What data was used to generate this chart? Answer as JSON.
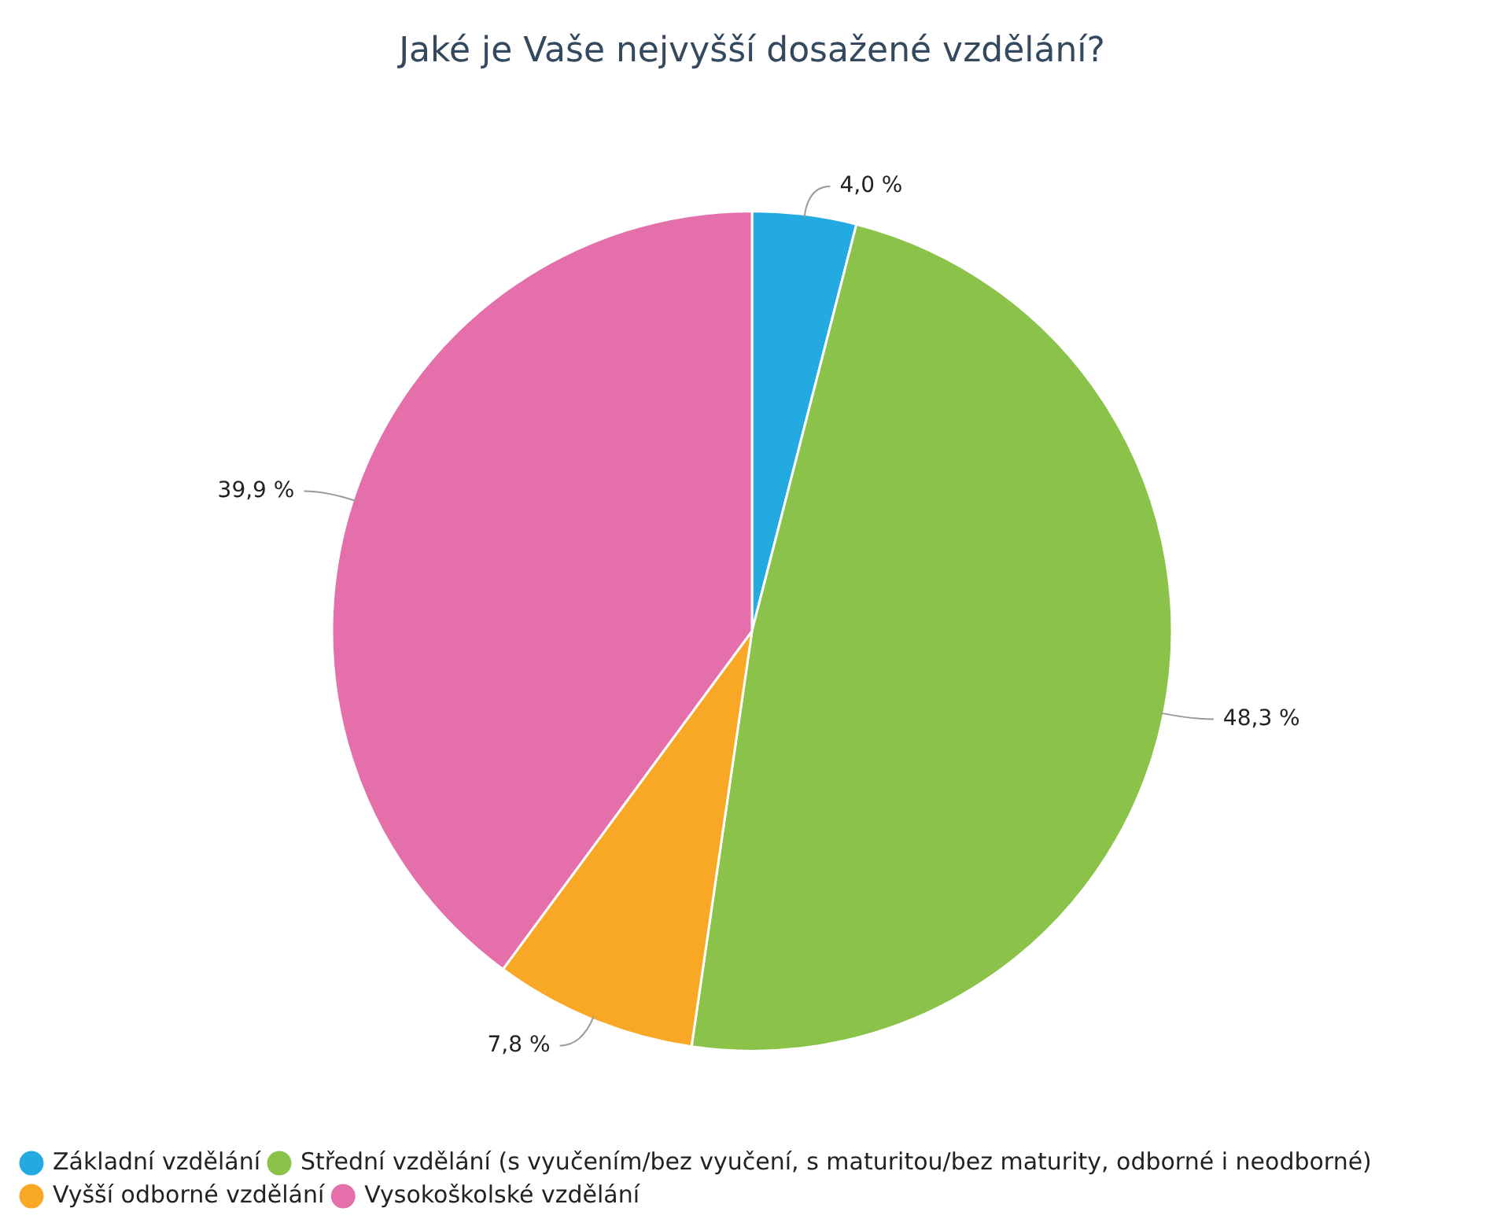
{
  "chart_data": {
    "type": "pie",
    "title": "Jaké je Vaše nejvyšší dosažené vzdělání?",
    "categories": [
      "Základní vzdělání",
      "Střední vzdělání (s vyučením/bez vyučení, s maturitou/bez maturity, odborné i neodborné)",
      "Vyšší odborné vzdělání",
      "Vysokoškolské vzdělání"
    ],
    "values": [
      4.0,
      48.3,
      7.8,
      39.9
    ],
    "colors": [
      "#22aae1",
      "#8bc34a",
      "#f9a825",
      "#e56faa"
    ],
    "value_labels": [
      "4,0 %",
      "48,3 %",
      "7,8 %",
      "39,9 %"
    ],
    "legend": "bottom left"
  }
}
